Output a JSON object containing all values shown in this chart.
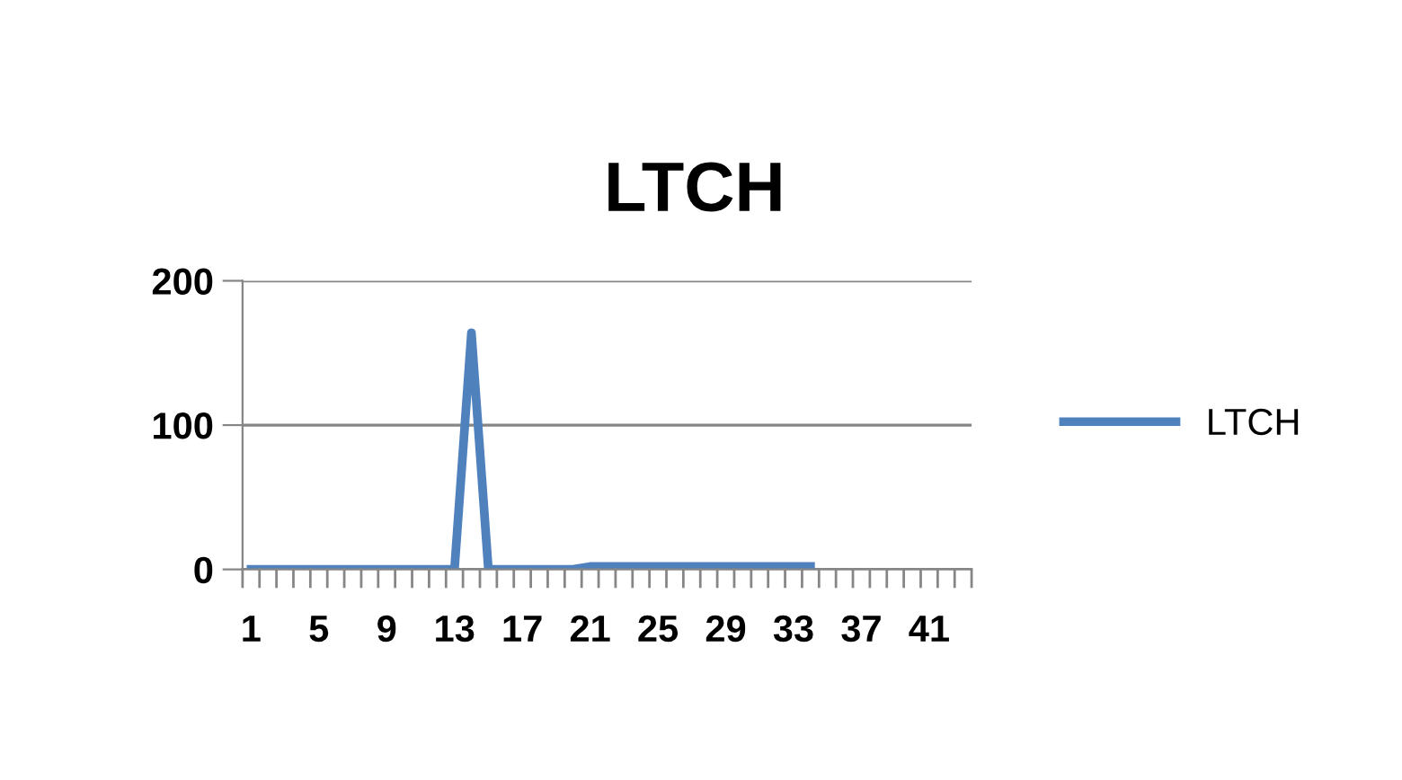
{
  "chart_data": {
    "type": "line",
    "title": "LTCH",
    "categories": [
      "1",
      null,
      null,
      null,
      "5",
      null,
      null,
      null,
      "9",
      null,
      null,
      null,
      "13",
      null,
      null,
      null,
      "17",
      null,
      null,
      null,
      "21",
      null,
      null,
      null,
      "25",
      null,
      null,
      null,
      "29",
      null,
      null,
      null,
      "33",
      null,
      null,
      null,
      "37",
      null,
      null,
      null,
      "41",
      null,
      null
    ],
    "series": [
      {
        "name": "LTCH",
        "color": "#4f81bd",
        "values": [
          0,
          0,
          0,
          0,
          0,
          0,
          0,
          0,
          0,
          0,
          0,
          0,
          0,
          164,
          0,
          0,
          0,
          0,
          0,
          0,
          2,
          2,
          2,
          2,
          2,
          2,
          2,
          2,
          2,
          2,
          2,
          2,
          2,
          2,
          null,
          null,
          null,
          null,
          null,
          null,
          null,
          null,
          null
        ]
      }
    ],
    "ylim": [
      0,
      200
    ],
    "yticks": [
      0,
      100,
      200
    ],
    "grid": "y",
    "legend": "right",
    "marker": "none",
    "line_style": "solid"
  }
}
